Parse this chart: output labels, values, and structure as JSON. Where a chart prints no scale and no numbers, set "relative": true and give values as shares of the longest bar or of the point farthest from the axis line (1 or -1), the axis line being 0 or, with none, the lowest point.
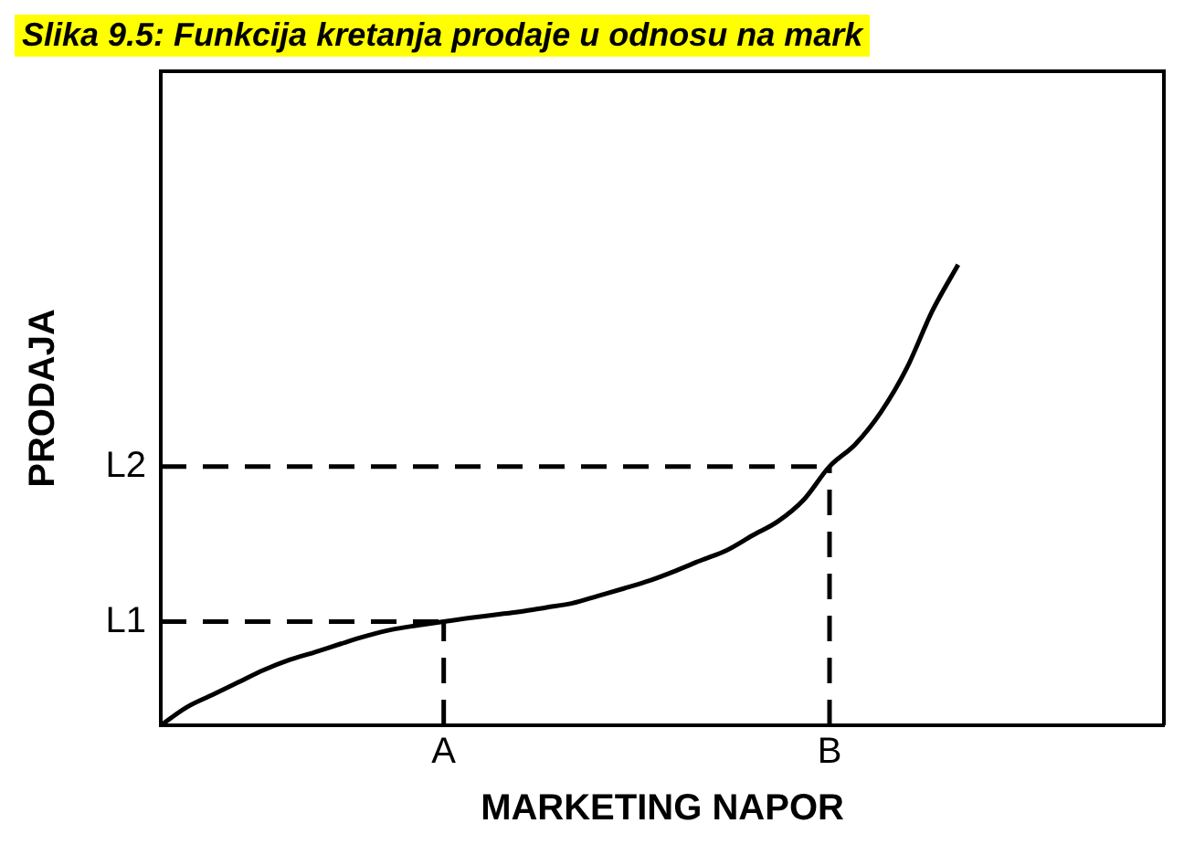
{
  "chart_data": {
    "type": "line",
    "title": "Slika 9.5: Funkcija kretanja prodaje u odnosu na mark",
    "xlabel": "MARKETING NAPOR",
    "ylabel": "PRODAJA",
    "relative": true,
    "categories": [
      null,
      null,
      null,
      null,
      null,
      null,
      null,
      null,
      null,
      null,
      null,
      "A",
      null,
      null,
      null,
      null,
      null,
      null,
      null,
      null,
      null,
      null,
      null,
      null,
      null,
      null,
      "B",
      null,
      null,
      null,
      null,
      null,
      null,
      null,
      null,
      null,
      null,
      null,
      null,
      null
    ],
    "grid": false,
    "legend": false,
    "marker": "none",
    "line_style": "solid",
    "series": [
      {
        "color": "#000000",
        "values": [
          0,
          0.039,
          0.066,
          0.093,
          0.12,
          0.142,
          0.159,
          0.177,
          0.194,
          0.208,
          0.217,
          0.225,
          0.233,
          0.24,
          0.247,
          0.256,
          0.265,
          0.281,
          0.297,
          0.314,
          0.335,
          0.358,
          0.38,
          0.412,
          0.443,
          0.49,
          0.562,
          0.61,
          0.68,
          0.775,
          0.9,
          1,
          null,
          null,
          null,
          null,
          null,
          null,
          null,
          null
        ]
      }
    ],
    "ref_lines": [
      {
        "axis": "y",
        "value": 0.225,
        "label": "L1",
        "color": "#000000",
        "line_style": "dashed"
      },
      {
        "axis": "y",
        "value": 0.562,
        "label": "L2",
        "color": "#000000",
        "line_style": "dashed"
      },
      {
        "axis": "x",
        "value": "A",
        "color": "#000000",
        "line_style": "dashed"
      },
      {
        "axis": "x",
        "value": "B",
        "color": "#000000",
        "line_style": "dashed"
      }
    ]
  }
}
